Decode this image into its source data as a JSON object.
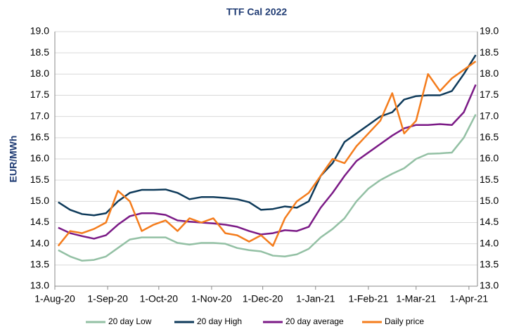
{
  "chart_data": {
    "type": "line",
    "title": "TTF Cal 2022",
    "y_label": "EUR/MWh",
    "x": [
      "2020-08-03",
      "2020-08-10",
      "2020-08-17",
      "2020-08-24",
      "2020-08-31",
      "2020-09-07",
      "2020-09-14",
      "2020-09-21",
      "2020-09-28",
      "2020-10-05",
      "2020-10-12",
      "2020-10-19",
      "2020-10-26",
      "2020-11-02",
      "2020-11-09",
      "2020-11-16",
      "2020-11-23",
      "2020-11-30",
      "2020-12-07",
      "2020-12-14",
      "2020-12-21",
      "2020-12-28",
      "2021-01-04",
      "2021-01-11",
      "2021-01-18",
      "2021-01-25",
      "2021-02-01",
      "2021-02-08",
      "2021-02-15",
      "2021-02-22",
      "2021-03-01",
      "2021-03-08",
      "2021-03-15",
      "2021-03-22",
      "2021-03-29",
      "2021-04-05"
    ],
    "series": [
      {
        "name": "20 day Low",
        "color": "#93c0a4",
        "values": [
          13.85,
          13.7,
          13.6,
          13.62,
          13.7,
          13.9,
          14.1,
          14.15,
          14.15,
          14.15,
          14.02,
          13.98,
          14.02,
          14.02,
          14.0,
          13.9,
          13.85,
          13.82,
          13.72,
          13.7,
          13.75,
          13.88,
          14.15,
          14.35,
          14.6,
          15.0,
          15.3,
          15.5,
          15.65,
          15.78,
          16.0,
          16.12,
          16.13,
          16.15,
          16.5,
          17.05
        ]
      },
      {
        "name": "20 day High",
        "color": "#0e3a5a",
        "values": [
          14.98,
          14.8,
          14.7,
          14.67,
          14.72,
          15.0,
          15.2,
          15.27,
          15.27,
          15.28,
          15.2,
          15.05,
          15.1,
          15.1,
          15.08,
          15.05,
          14.98,
          14.8,
          14.82,
          14.88,
          14.85,
          15.0,
          15.6,
          15.9,
          16.4,
          16.6,
          16.8,
          17.0,
          17.1,
          17.4,
          17.48,
          17.5,
          17.5,
          17.6,
          18.0,
          18.45
        ]
      },
      {
        "name": "20 day average",
        "color": "#7b1a86",
        "values": [
          14.38,
          14.25,
          14.18,
          14.12,
          14.2,
          14.45,
          14.65,
          14.72,
          14.72,
          14.68,
          14.55,
          14.52,
          14.5,
          14.48,
          14.45,
          14.4,
          14.3,
          14.22,
          14.25,
          14.32,
          14.3,
          14.4,
          14.85,
          15.2,
          15.6,
          15.95,
          16.15,
          16.35,
          16.55,
          16.72,
          16.8,
          16.8,
          16.82,
          16.8,
          17.1,
          17.75
        ]
      },
      {
        "name": "Daily price",
        "color": "#f47c1c",
        "values": [
          13.95,
          14.3,
          14.25,
          14.35,
          14.5,
          15.25,
          15.0,
          14.3,
          14.45,
          14.55,
          14.3,
          14.6,
          14.5,
          14.6,
          14.25,
          14.2,
          14.05,
          14.2,
          13.95,
          14.6,
          15.0,
          15.2,
          15.6,
          16.0,
          15.9,
          16.3,
          16.6,
          16.9,
          17.55,
          16.6,
          16.9,
          18.0,
          17.6,
          17.9,
          18.1,
          18.3
        ]
      }
    ],
    "xlim": [
      "2020-08-01",
      "2021-04-06"
    ],
    "xticks": [
      {
        "value": "2020-08-01",
        "label": "1-Aug-20"
      },
      {
        "value": "2020-09-01",
        "label": "1-Sep-20"
      },
      {
        "value": "2020-10-01",
        "label": "1-Oct-20"
      },
      {
        "value": "2020-11-01",
        "label": "1-Nov-20"
      },
      {
        "value": "2020-12-01",
        "label": "1-Dec-20"
      },
      {
        "value": "2021-01-01",
        "label": "1-Jan-21"
      },
      {
        "value": "2021-02-01",
        "label": "1-Feb-21"
      },
      {
        "value": "2021-03-01",
        "label": "1-Mar-21"
      },
      {
        "value": "2021-04-01",
        "label": "1-Apr-21"
      }
    ],
    "ylim": [
      13,
      19
    ],
    "yticks": [
      {
        "value": 13,
        "label": "13.0"
      },
      {
        "value": 13.5,
        "label": "13.5"
      },
      {
        "value": 14,
        "label": "14.0"
      },
      {
        "value": 14.5,
        "label": "14.5"
      },
      {
        "value": 15,
        "label": "15.0"
      },
      {
        "value": 15.5,
        "label": "15.5"
      },
      {
        "value": 16,
        "label": "16.0"
      },
      {
        "value": 16.5,
        "label": "16.5"
      },
      {
        "value": 17,
        "label": "17.0"
      },
      {
        "value": 17.5,
        "label": "17.5"
      },
      {
        "value": 18,
        "label": "18.0"
      },
      {
        "value": 18.5,
        "label": "18.5"
      },
      {
        "value": 19,
        "label": "19.0"
      }
    ],
    "legend": "bottom"
  }
}
